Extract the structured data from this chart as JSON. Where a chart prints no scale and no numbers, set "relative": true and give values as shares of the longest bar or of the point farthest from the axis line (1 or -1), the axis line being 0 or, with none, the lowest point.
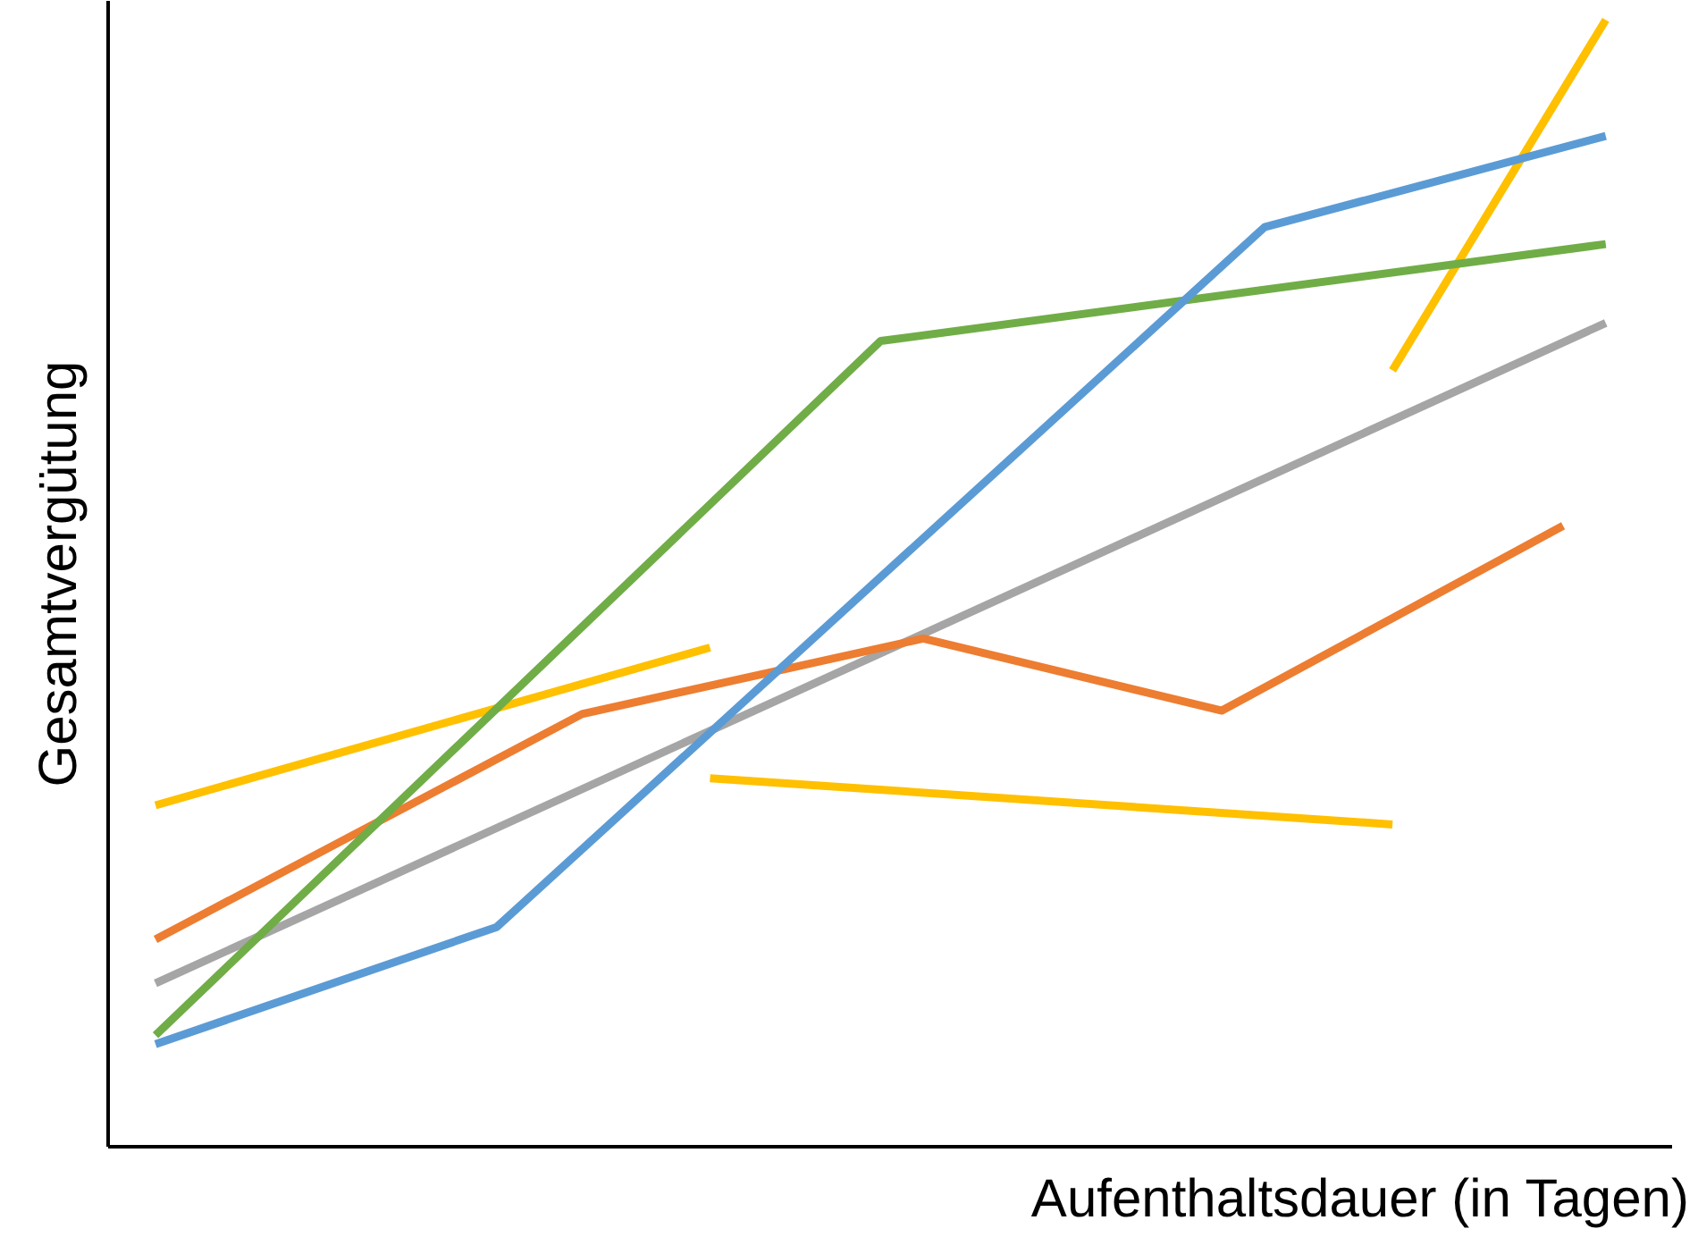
{
  "chart_data": {
    "type": "line",
    "relative": true,
    "xlabel": "Aufenthaltsdauer (in Tagen)",
    "ylabel": "Gesamtvergütung",
    "grid": false,
    "tick_labels": false,
    "categories": [
      null,
      null,
      null,
      null,
      null,
      null,
      null,
      null,
      null,
      null,
      null,
      null,
      null,
      null,
      null,
      null,
      null,
      null,
      null,
      null,
      null,
      null,
      null,
      null,
      null,
      null,
      null,
      null,
      null,
      null,
      null,
      null,
      null,
      null,
      null
    ],
    "series": [
      {
        "color": "#a5a5a5",
        "values": [
          0.145,
          null,
          null,
          null,
          null,
          null,
          null,
          null,
          null,
          null,
          null,
          null,
          null,
          null,
          null,
          null,
          null,
          null,
          null,
          null,
          null,
          null,
          null,
          null,
          null,
          null,
          null,
          null,
          null,
          null,
          null,
          null,
          null,
          null,
          0.731
        ]
      },
      {
        "color": "#ffc000",
        "values": [
          0.303,
          null,
          null,
          null,
          null,
          null,
          null,
          null,
          null,
          null,
          null,
          null,
          null,
          0.443,
          null,
          null,
          null,
          null,
          null,
          null,
          null,
          null,
          null,
          null,
          null,
          null,
          null,
          null,
          null,
          null,
          null,
          null,
          null,
          null,
          null
        ]
      },
      {
        "color": "#ffc000",
        "values": [
          null,
          null,
          null,
          null,
          null,
          null,
          null,
          null,
          null,
          null,
          null,
          null,
          null,
          0.327,
          null,
          null,
          null,
          null,
          null,
          null,
          null,
          null,
          null,
          null,
          null,
          null,
          null,
          null,
          null,
          0.286,
          null,
          null,
          null,
          null,
          null
        ]
      },
      {
        "color": "#ffc000",
        "values": [
          null,
          null,
          null,
          null,
          null,
          null,
          null,
          null,
          null,
          null,
          null,
          null,
          null,
          null,
          null,
          null,
          null,
          null,
          null,
          null,
          null,
          null,
          null,
          null,
          null,
          null,
          null,
          null,
          null,
          0.689,
          null,
          null,
          null,
          null,
          1.0
        ]
      },
      {
        "color": "#ed7d31",
        "values": [
          0.184,
          null,
          null,
          null,
          null,
          null,
          null,
          null,
          null,
          null,
          0.384,
          null,
          null,
          null,
          null,
          null,
          null,
          null,
          0.451,
          null,
          null,
          null,
          null,
          null,
          null,
          0.387,
          null,
          null,
          null,
          null,
          null,
          null,
          null,
          0.551,
          null
        ]
      },
      {
        "color": "#70ad47",
        "values": [
          0.099,
          null,
          null,
          null,
          null,
          null,
          null,
          null,
          null,
          null,
          null,
          null,
          null,
          null,
          null,
          null,
          null,
          0.715,
          null,
          null,
          null,
          null,
          null,
          null,
          null,
          null,
          null,
          null,
          null,
          null,
          null,
          null,
          null,
          null,
          0.801
        ]
      },
      {
        "color": "#5b9bd5",
        "values": [
          0.091,
          null,
          null,
          null,
          null,
          null,
          null,
          null,
          0.195,
          null,
          null,
          null,
          null,
          null,
          null,
          null,
          null,
          null,
          null,
          null,
          null,
          null,
          null,
          null,
          null,
          null,
          0.816,
          null,
          null,
          null,
          null,
          null,
          null,
          null,
          0.897
        ]
      }
    ]
  }
}
